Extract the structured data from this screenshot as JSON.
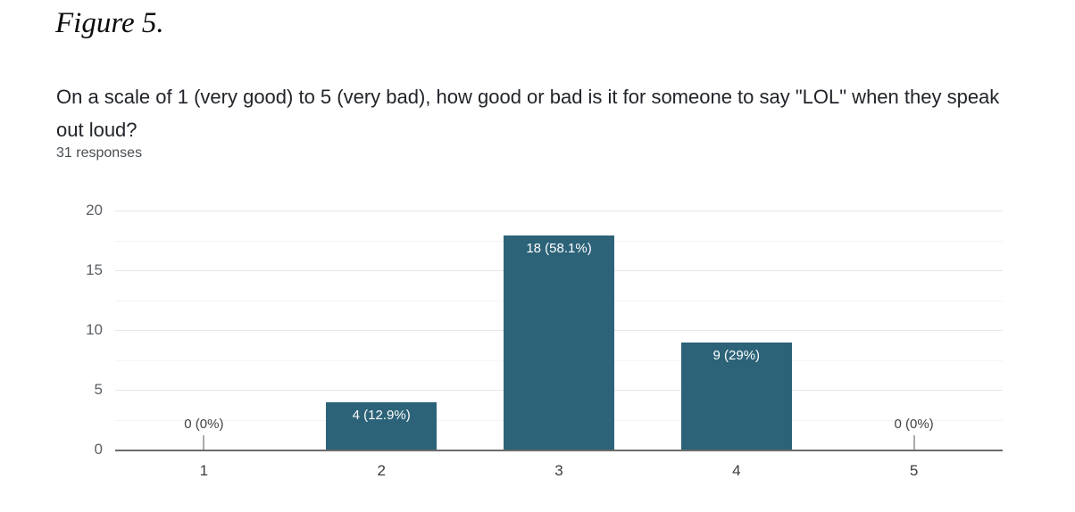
{
  "figure_label": "Figure 5.",
  "question": {
    "title": "On a scale of 1 (very good) to 5 (very bad), how good or bad is it for someone to say \"LOL\" when they speak out loud?",
    "responses_label": "31 responses"
  },
  "chart_data": {
    "type": "bar",
    "title": "On a scale of 1 (very good) to 5 (very bad), how good or bad is it for someone to say \"LOL\" when they speak out loud?",
    "subtitle": "31 responses",
    "total_responses": 31,
    "categories": [
      "1",
      "2",
      "3",
      "4",
      "5"
    ],
    "values": [
      0,
      4,
      18,
      9,
      0
    ],
    "percentages": [
      0,
      12.9,
      58.1,
      29,
      0
    ],
    "value_labels": [
      "0 (0%)",
      "4 (12.9%)",
      "18 (58.1%)",
      "9 (29%)",
      "0 (0%)"
    ],
    "xlabel": "",
    "ylabel": "",
    "ylim": [
      0,
      20
    ],
    "yticks": [
      0,
      5,
      10,
      15,
      20
    ],
    "minor_yticks": [
      2.5,
      7.5,
      12.5,
      17.5
    ],
    "grid": "horizontal",
    "legend_position": "none",
    "bar_color": "#2c6378",
    "in_bar_label_color": "#ffffff",
    "zero_label_color": "#3f4246",
    "axis_tick_color": "#5c6064",
    "baseline_color": "#6b6b6b"
  }
}
